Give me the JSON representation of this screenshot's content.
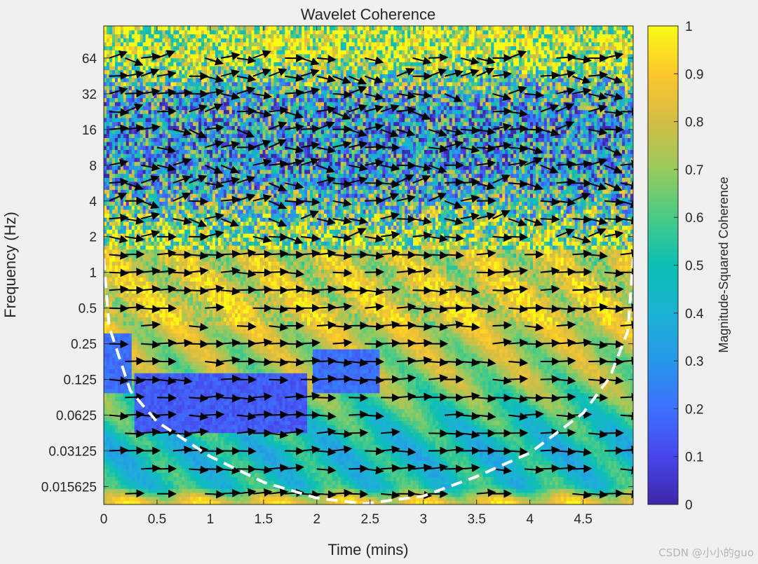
{
  "chart_data": {
    "type": "heatmap",
    "title": "Wavelet Coherence",
    "xlabel": "Time (mins)",
    "ylabel": "Frequency (Hz)",
    "xlim": [
      0,
      4.97
    ],
    "ylim_log2": [
      -6.5,
      6.9
    ],
    "y_scale": "log2",
    "x_ticks": [
      0,
      0.5,
      1,
      1.5,
      2,
      2.5,
      3,
      3.5,
      4,
      4.5
    ],
    "x_tick_labels": [
      "0",
      "0.5",
      "1",
      "1.5",
      "2",
      "2.5",
      "3",
      "3.5",
      "4",
      "4.5"
    ],
    "y_ticks": [
      64,
      32,
      16,
      8,
      4,
      2,
      1,
      0.5,
      0.25,
      0.125,
      0.0625,
      0.03125,
      0.015625
    ],
    "y_tick_labels": [
      "64",
      "32",
      "16",
      "8",
      "4",
      "2",
      "1",
      "0.5",
      "0.25",
      "0.125",
      "0.0625",
      "0.03125",
      "0.015625"
    ],
    "colorbar": {
      "label": "Magnitude-Squared Coherence",
      "range": [
        0,
        1
      ],
      "ticks": [
        "0",
        "0.1",
        "0.2",
        "0.3",
        "0.4",
        "0.5",
        "0.6",
        "0.7",
        "0.8",
        "0.9",
        "1"
      ],
      "colormap": [
        "#3e26a8",
        "#4746eb",
        "#3e70ff",
        "#2797eb",
        "#1cb2d4",
        "#0bbfb3",
        "#48cb86",
        "#98ca5e",
        "#d3bd45",
        "#fcc72c",
        "#f9fb15"
      ]
    },
    "coherence_bands": [
      {
        "freq": 64,
        "coherence": 0.85,
        "pattern": "noisy"
      },
      {
        "freq": 32,
        "coherence": 0.45,
        "pattern": "noisy"
      },
      {
        "freq": 16,
        "coherence": 0.35,
        "pattern": "noisy"
      },
      {
        "freq": 8,
        "coherence": 0.35,
        "pattern": "noisy"
      },
      {
        "freq": 4,
        "coherence": 0.5,
        "pattern": "noisy"
      },
      {
        "freq": 2,
        "coherence": 0.75,
        "pattern": "noisy"
      },
      {
        "freq": 1,
        "coherence": 0.8
      },
      {
        "freq": 0.5,
        "coherence": 0.85
      },
      {
        "freq": 0.25,
        "coherence": 0.75
      },
      {
        "freq": 0.125,
        "coherence": 0.7
      },
      {
        "freq": 0.0625,
        "coherence": 0.55
      },
      {
        "freq": 0.03125,
        "coherence": 0.45
      },
      {
        "freq": 0.015625,
        "coherence": 0.5
      },
      {
        "freq": 0.012,
        "coherence": 0.85
      }
    ],
    "low_coherence_regions": [
      {
        "time": [
          0.3,
          1.9
        ],
        "freq": [
          0.045,
          0.14
        ],
        "coherence": 0.1
      },
      {
        "time": [
          1.95,
          2.6
        ],
        "freq": [
          0.1,
          0.22
        ],
        "coherence": 0.15
      },
      {
        "time": [
          0,
          0.25
        ],
        "freq": [
          0.1,
          0.3
        ],
        "coherence": 0.15
      }
    ],
    "cone_of_influence": [
      {
        "time": 0,
        "freq": 1.3
      },
      {
        "time": 0.05,
        "freq": 0.35
      },
      {
        "time": 0.25,
        "freq": 0.1
      },
      {
        "time": 0.5,
        "freq": 0.055
      },
      {
        "time": 1.0,
        "freq": 0.028
      },
      {
        "time": 1.5,
        "freq": 0.017
      },
      {
        "time": 2.0,
        "freq": 0.0125
      },
      {
        "time": 2.45,
        "freq": 0.0112
      },
      {
        "time": 3.0,
        "freq": 0.013
      },
      {
        "time": 3.5,
        "freq": 0.019
      },
      {
        "time": 4.0,
        "freq": 0.03
      },
      {
        "time": 4.5,
        "freq": 0.065
      },
      {
        "time": 4.75,
        "freq": 0.13
      },
      {
        "time": 4.92,
        "freq": 0.32
      },
      {
        "time": 4.97,
        "freq": 1.3
      }
    ],
    "phase_arrow_rows": [
      64,
      45,
      32,
      22.6,
      16,
      11.3,
      8,
      5.66,
      4,
      2.83,
      2,
      1.41,
      1,
      0.707,
      0.5,
      0.354,
      0.25,
      0.177,
      0.125,
      0.088,
      0.0625,
      0.044,
      0.03125,
      0.022,
      0.0136
    ],
    "phase_arrow_direction": "mostly right-pointing (in-phase)"
  },
  "watermark": "CSDN @小小的guo"
}
